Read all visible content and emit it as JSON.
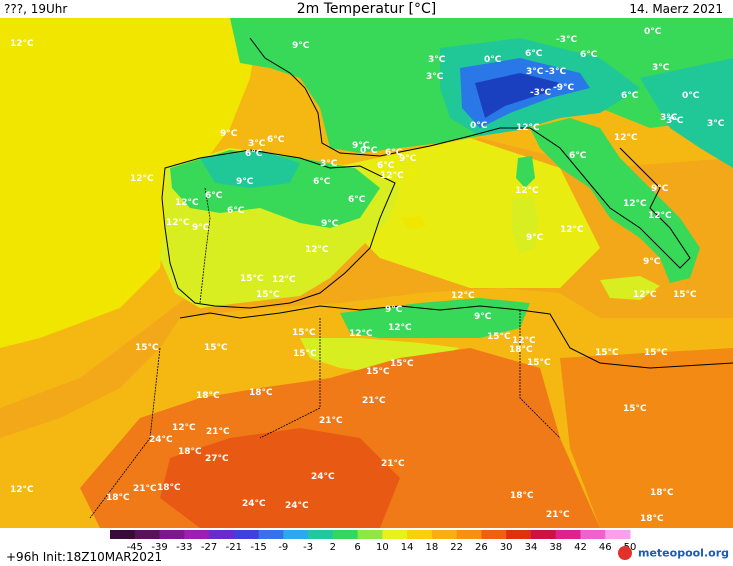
{
  "header": {
    "left": "???, 19Uhr",
    "title": "2m Temperatur [°C]",
    "date": "14. Maerz 2021"
  },
  "footer": {
    "init": "+96h Init:18Z10MAR2021",
    "brand": "meteopool.org"
  },
  "legend": {
    "ticks": [
      "-45",
      "-39",
      "-33",
      "-27",
      "-21",
      "-15",
      "-9",
      "-3",
      "2",
      "6",
      "10",
      "14",
      "18",
      "22",
      "26",
      "30",
      "34",
      "38",
      "42",
      "46",
      "50"
    ],
    "colors": [
      "#3a0a3a",
      "#5a0f5f",
      "#7a1a8a",
      "#9a20b0",
      "#6a2ad0",
      "#4040e0",
      "#3a70f0",
      "#2aa8f0",
      "#20c8a0",
      "#30d860",
      "#8ee840",
      "#e8f020",
      "#f8d010",
      "#f8b010",
      "#f89010",
      "#f06010",
      "#e03010",
      "#d01040",
      "#e02090",
      "#f060d0",
      "#f8a0f0"
    ]
  },
  "map": {
    "colors": {
      "sea_warm": "#f2a818",
      "sea_mid": "#f5b812",
      "sea_cool": "#f0e600",
      "land_green": "#38d858",
      "land_cyan": "#20c898",
      "land_blue": "#2a78e8",
      "land_dark": "#1a40c0",
      "land_yellow": "#d8ee20",
      "desert_orange": "#f07a18",
      "desert_deep": "#e85a14"
    },
    "labels": [
      {
        "t": "12°C"
      },
      {
        "t": "9°C"
      },
      {
        "t": "3°C"
      },
      {
        "t": "0°C"
      },
      {
        "t": "6°C"
      },
      {
        "t": "-3°C"
      },
      {
        "t": "6°C"
      },
      {
        "t": "0°C"
      },
      {
        "t": "3°C"
      },
      {
        "t": "3°C"
      },
      {
        "t": "-3°C"
      },
      {
        "t": "-9°C"
      },
      {
        "t": "3°C"
      },
      {
        "t": "-3°C"
      },
      {
        "t": "6°C"
      },
      {
        "t": "0°C"
      },
      {
        "t": "9°C"
      },
      {
        "t": "3°C"
      },
      {
        "t": "6°C"
      },
      {
        "t": "6°C"
      },
      {
        "t": "9°C"
      },
      {
        "t": "3°C"
      },
      {
        "t": "12°C"
      },
      {
        "t": "6°C"
      },
      {
        "t": "0°C"
      },
      {
        "t": "6°C"
      },
      {
        "t": "12°C"
      },
      {
        "t": "9°C"
      },
      {
        "t": "3°C"
      },
      {
        "t": "3°C"
      },
      {
        "t": "0°C"
      },
      {
        "t": "3°C"
      },
      {
        "t": "6°C"
      },
      {
        "t": "6°C"
      },
      {
        "t": "9°C"
      },
      {
        "t": "12°C"
      },
      {
        "t": "12°C"
      },
      {
        "t": "9°C"
      },
      {
        "t": "6°C"
      },
      {
        "t": "6°C"
      },
      {
        "t": "12°C"
      },
      {
        "t": "12°C"
      },
      {
        "t": "6°C"
      },
      {
        "t": "9°C"
      },
      {
        "t": "12°C"
      },
      {
        "t": "9°C"
      },
      {
        "t": "12°C"
      },
      {
        "t": "12°C"
      },
      {
        "t": "9°C"
      },
      {
        "t": "12°C"
      },
      {
        "t": "9°C"
      },
      {
        "t": "12°C"
      },
      {
        "t": "15°C"
      },
      {
        "t": "12°C"
      },
      {
        "t": "15°C"
      },
      {
        "t": "12°C"
      },
      {
        "t": "15°C"
      },
      {
        "t": "9°C"
      },
      {
        "t": "12°C"
      },
      {
        "t": "12°C"
      },
      {
        "t": "9°C"
      },
      {
        "t": "12°C"
      },
      {
        "t": "15°C"
      },
      {
        "t": "15°C"
      },
      {
        "t": "15°C"
      },
      {
        "t": "15°C"
      },
      {
        "t": "15°C"
      },
      {
        "t": "12°C"
      },
      {
        "t": "15°C"
      },
      {
        "t": "18°C"
      },
      {
        "t": "15°C"
      },
      {
        "t": "15°C"
      },
      {
        "t": "15°C"
      },
      {
        "t": "18°C"
      },
      {
        "t": "18°C"
      },
      {
        "t": "15°C"
      },
      {
        "t": "15°C"
      },
      {
        "t": "12°C"
      },
      {
        "t": "21°C"
      },
      {
        "t": "21°C"
      },
      {
        "t": "18°C"
      },
      {
        "t": "27°C"
      },
      {
        "t": "24°C"
      },
      {
        "t": "21°C"
      },
      {
        "t": "18°C"
      },
      {
        "t": "24°C"
      },
      {
        "t": "24°C"
      },
      {
        "t": "24°C"
      },
      {
        "t": "21°C"
      },
      {
        "t": "18°C"
      },
      {
        "t": "18°C"
      },
      {
        "t": "18°C"
      },
      {
        "t": "21°C"
      },
      {
        "t": "21°C"
      },
      {
        "t": "12°C"
      },
      {
        "t": "18°C"
      }
    ]
  }
}
